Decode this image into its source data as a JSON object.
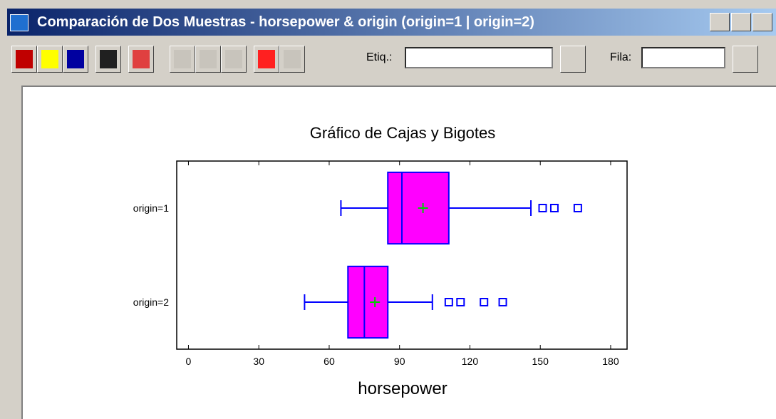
{
  "window": {
    "title": "Comparación de Dos Muestras - horsepower & origin (origin=1 | origin=2)"
  },
  "toolbar": {
    "tag_label": "Etiq.:",
    "row_label": "Fila:"
  },
  "chart_data": {
    "type": "box",
    "title": "Gráfico de Cajas y Bigotes",
    "x_label": "horsepower",
    "categories": [
      "origin=1",
      "origin=2"
    ],
    "box_color": "#ff00ff",
    "line_color": "#0000ff",
    "mean_color": "#00cc00",
    "series": [
      {
        "name": "origin=1",
        "min": 65,
        "q1": 85,
        "median": 91,
        "q3": 111,
        "max": 146,
        "mean": 100,
        "outliers": [
          151,
          156,
          166
        ]
      },
      {
        "name": "origin=2",
        "min": 49.5,
        "q1": 68,
        "median": 75,
        "q3": 85,
        "max": 104,
        "mean": 79.5,
        "outliers": [
          111,
          116,
          126,
          134
        ]
      }
    ],
    "xlim": [
      -5,
      187
    ],
    "xticks": [
      0,
      30,
      60,
      90,
      120,
      150,
      180
    ]
  }
}
